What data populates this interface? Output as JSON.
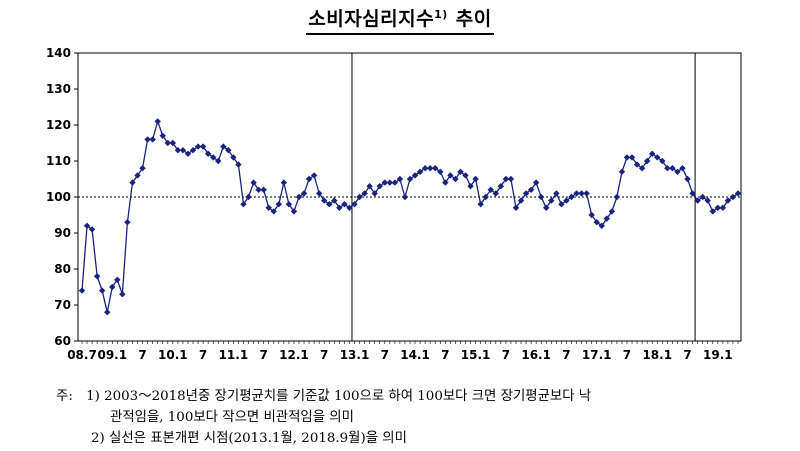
{
  "title": "소비자심리지수",
  "title_sup": "1)",
  "title_suffix": "추이",
  "notes": {
    "prefix": "주:",
    "line1": "1) 2003～2018년중 장기평균치를 기준값 100으로 하여 100보다 크면 장기평균보다 낙",
    "line2": "관적임을, 100보다 작으면 비관적임을 의미",
    "line3": "2) 실선은 표본개편 시점(2013.1월, 2018.9월)을 의미"
  },
  "chart_data": {
    "type": "line",
    "title": "",
    "xlabel": "",
    "ylabel": "",
    "ylim": [
      60,
      140
    ],
    "yticks": [
      60,
      70,
      80,
      90,
      100,
      110,
      120,
      130,
      140
    ],
    "x_tick_labels": [
      {
        "month_index": 0,
        "label": "08.7"
      },
      {
        "month_index": 6,
        "label": "09.1"
      },
      {
        "month_index": 12,
        "label": "7"
      },
      {
        "month_index": 18,
        "label": "10.1"
      },
      {
        "month_index": 24,
        "label": "7"
      },
      {
        "month_index": 30,
        "label": "11.1"
      },
      {
        "month_index": 36,
        "label": "7"
      },
      {
        "month_index": 42,
        "label": "12.1"
      },
      {
        "month_index": 48,
        "label": "7"
      },
      {
        "month_index": 54,
        "label": "13.1"
      },
      {
        "month_index": 60,
        "label": "7"
      },
      {
        "month_index": 66,
        "label": "14.1"
      },
      {
        "month_index": 72,
        "label": "7"
      },
      {
        "month_index": 78,
        "label": "15.1"
      },
      {
        "month_index": 84,
        "label": "7"
      },
      {
        "month_index": 90,
        "label": "16.1"
      },
      {
        "month_index": 96,
        "label": "7"
      },
      {
        "month_index": 102,
        "label": "17.1"
      },
      {
        "month_index": 108,
        "label": "7"
      },
      {
        "month_index": 114,
        "label": "18.1"
      },
      {
        "month_index": 120,
        "label": "7"
      },
      {
        "month_index": 126,
        "label": "19.1"
      }
    ],
    "reference_line": 100,
    "vertical_lines": [
      "2013.1",
      "2018.9"
    ],
    "series": [
      {
        "color": "#1a237e",
        "marker": "diamond",
        "values": [
          74,
          92,
          91,
          78,
          74,
          68,
          75,
          77,
          73,
          93,
          104,
          106,
          108,
          116,
          116,
          121,
          117,
          115,
          115,
          113,
          113,
          112,
          113,
          114,
          114,
          112,
          111,
          110,
          114,
          113,
          111,
          109,
          98,
          100,
          104,
          102,
          102,
          97,
          96,
          98,
          104,
          98,
          96,
          100,
          101,
          105,
          106,
          101,
          99,
          98,
          99,
          97,
          98,
          97,
          98,
          100,
          101,
          103,
          101,
          103,
          104,
          104,
          104,
          105,
          100,
          105,
          106,
          107,
          108,
          108,
          108,
          107,
          104,
          106,
          105,
          107,
          106,
          103,
          105,
          98,
          100,
          102,
          101,
          103,
          105,
          105,
          97,
          99,
          101,
          102,
          104,
          100,
          97,
          99,
          101,
          98,
          99,
          100,
          101,
          101,
          101,
          95,
          93,
          92,
          94,
          96,
          100,
          107,
          111,
          111,
          109,
          108,
          110,
          112,
          111,
          110,
          108,
          108,
          107,
          108,
          105,
          101,
          99,
          100,
          99,
          96,
          97,
          97,
          99,
          100,
          101
        ]
      }
    ]
  }
}
